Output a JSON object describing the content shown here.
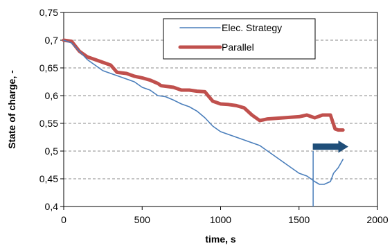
{
  "chart_data": {
    "type": "line",
    "xlabel": "time, s",
    "ylabel": "State of charge, -",
    "xlim": [
      0,
      2000
    ],
    "ylim": [
      0.4,
      0.75
    ],
    "x_ticks": [
      0,
      500,
      1000,
      1500,
      2000
    ],
    "x_tick_labels": [
      "0",
      "500",
      "1000",
      "1500",
      "2000"
    ],
    "y_ticks": [
      0.4,
      0.45,
      0.5,
      0.55,
      0.6,
      0.65,
      0.7,
      0.75
    ],
    "y_tick_labels": [
      "0,4",
      "0,45",
      "0,5",
      "0,55",
      "0,6",
      "0,65",
      "0,7",
      "0,75"
    ],
    "grid": "horizontal dashed",
    "legend_position": "top-center",
    "series": [
      {
        "name": "Elec. Strategy",
        "color": "#4a7ebb",
        "x": [
          0,
          50,
          100,
          150,
          200,
          250,
          300,
          350,
          400,
          450,
          500,
          550,
          600,
          650,
          700,
          750,
          800,
          850,
          900,
          950,
          1000,
          1050,
          1100,
          1150,
          1200,
          1250,
          1300,
          1350,
          1400,
          1450,
          1500,
          1550,
          1600,
          1630,
          1660,
          1700,
          1720,
          1750,
          1780
        ],
        "y": [
          0.7,
          0.695,
          0.68,
          0.665,
          0.655,
          0.645,
          0.64,
          0.635,
          0.63,
          0.625,
          0.615,
          0.61,
          0.6,
          0.598,
          0.592,
          0.585,
          0.58,
          0.572,
          0.56,
          0.545,
          0.535,
          0.53,
          0.525,
          0.52,
          0.515,
          0.51,
          0.5,
          0.49,
          0.48,
          0.47,
          0.46,
          0.455,
          0.445,
          0.44,
          0.44,
          0.445,
          0.46,
          0.47,
          0.485
        ]
      },
      {
        "name": "Parallel",
        "color": "#c0504d",
        "x": [
          0,
          50,
          100,
          150,
          200,
          250,
          300,
          340,
          400,
          450,
          500,
          550,
          600,
          620,
          700,
          750,
          800,
          850,
          900,
          920,
          950,
          1000,
          1050,
          1100,
          1150,
          1200,
          1250,
          1300,
          1400,
          1500,
          1550,
          1600,
          1650,
          1700,
          1730,
          1750,
          1780
        ],
        "y": [
          0.7,
          0.698,
          0.68,
          0.67,
          0.665,
          0.66,
          0.655,
          0.642,
          0.64,
          0.635,
          0.632,
          0.628,
          0.622,
          0.618,
          0.615,
          0.61,
          0.61,
          0.608,
          0.607,
          0.6,
          0.59,
          0.585,
          0.584,
          0.582,
          0.578,
          0.565,
          0.555,
          0.558,
          0.56,
          0.562,
          0.565,
          0.56,
          0.565,
          0.565,
          0.54,
          0.538,
          0.538
        ]
      }
    ],
    "annotation": {
      "type": "arrow",
      "vertical_line_x": 1590,
      "vertical_line_y": [
        0.4,
        0.5
      ],
      "arrow_x": [
        1590,
        1810
      ],
      "arrow_y": 0.508,
      "color": "#1f4e79"
    }
  }
}
